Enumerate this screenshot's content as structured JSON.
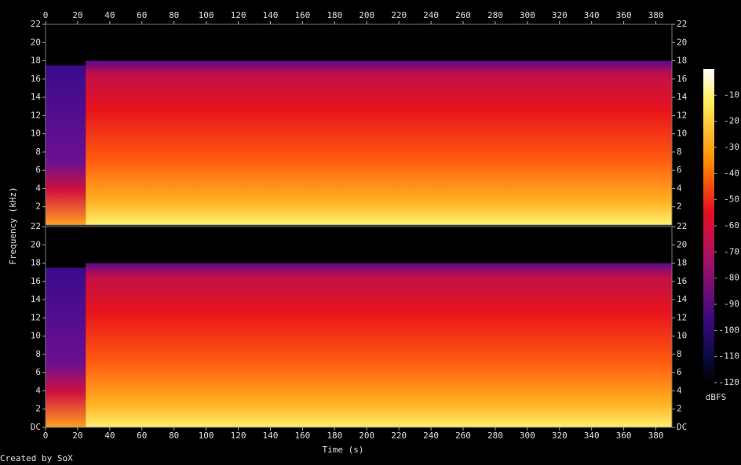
{
  "chart_data": {
    "type": "spectrogram",
    "xlabel": "Time (s)",
    "ylabel": "Frequency (kHz)",
    "credit": "Created by SoX",
    "xlim": [
      0,
      390
    ],
    "xticks": [
      0,
      20,
      40,
      60,
      80,
      100,
      120,
      140,
      160,
      180,
      200,
      220,
      240,
      260,
      280,
      300,
      320,
      340,
      360,
      380
    ],
    "ylim": [
      0,
      22
    ],
    "channels": [
      {
        "yticks": [
          2,
          4,
          6,
          8,
          10,
          12,
          14,
          16,
          18,
          20,
          22
        ],
        "x": [
          0,
          25
        ],
        "values": [
          17.5,
          18
        ]
      },
      {
        "yticks": [
          {
            "value": 0,
            "label": "DC"
          },
          2,
          4,
          6,
          8,
          10,
          12,
          14,
          16,
          18,
          20,
          22
        ],
        "x": [
          0,
          25
        ],
        "values": [
          17.5,
          18
        ]
      }
    ],
    "colorbar": {
      "label": "dBFS",
      "lim": [
        -120,
        0
      ],
      "ticks": [
        -10,
        -20,
        -30,
        -40,
        -50,
        -60,
        -70,
        -80,
        -90,
        -100,
        -110,
        -120
      ]
    }
  }
}
